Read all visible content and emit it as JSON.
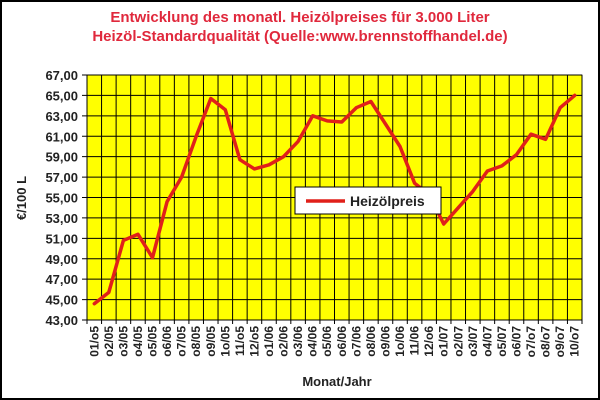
{
  "title": {
    "line1": "Entwicklung des monatl. Heizölpreises für 3.000 Liter",
    "line2": "Heizöl-Standardqualität (Quelle:www.brennstoffhandel.de)"
  },
  "colors": {
    "plot_background": "#ffff00",
    "grid": "#000000",
    "line": "#e0201a",
    "title": "#e0283c"
  },
  "chart_data": {
    "type": "line",
    "title": "Entwicklung des monatl. Heizölpreises für 3.000 Liter Heizöl-Standardqualität (Quelle:www.brennstoffhandel.de)",
    "xlabel": "Monat/Jahr",
    "ylabel": "€/100 L",
    "ylim": [
      43,
      67
    ],
    "yticks": [
      "67,00",
      "65,00",
      "63,00",
      "61,00",
      "59,00",
      "57,00",
      "55,00",
      "53,00",
      "51,00",
      "49,00",
      "47,00",
      "45,00",
      "43,00"
    ],
    "grid": true,
    "legend_position": "center",
    "categories": [
      "01/o5",
      "o2/05",
      "o3/05",
      "o4/05",
      "o5/05",
      "o6/06",
      "o7/05",
      "o8/05",
      "o9/05",
      "1o/05",
      "11/o5",
      "12/o5",
      "o1/06",
      "o2/06",
      "o3/06",
      "o4/06",
      "o5/06",
      "o6/06",
      "o7/06",
      "o8/06",
      "o9/06",
      "1o/06",
      "11/06",
      "12/o6",
      "o1/07",
      "o2/07",
      "o3/07",
      "o4/07",
      "o5/07",
      "o6/07",
      "o7/o7",
      "o8/o7",
      "o9/o7",
      "10/o7"
    ],
    "series": [
      {
        "name": "Heizölpreis",
        "values": [
          44.6,
          45.7,
          50.8,
          51.4,
          49.1,
          54.6,
          57.0,
          61.0,
          64.7,
          63.6,
          58.7,
          57.8,
          58.2,
          59.0,
          60.5,
          63.0,
          62.5,
          62.4,
          63.8,
          64.4,
          62.2,
          60.0,
          56.4,
          55.3,
          52.4,
          54.0,
          55.6,
          57.6,
          58.1,
          59.2,
          61.2,
          60.7,
          63.8,
          65.0
        ]
      }
    ]
  }
}
